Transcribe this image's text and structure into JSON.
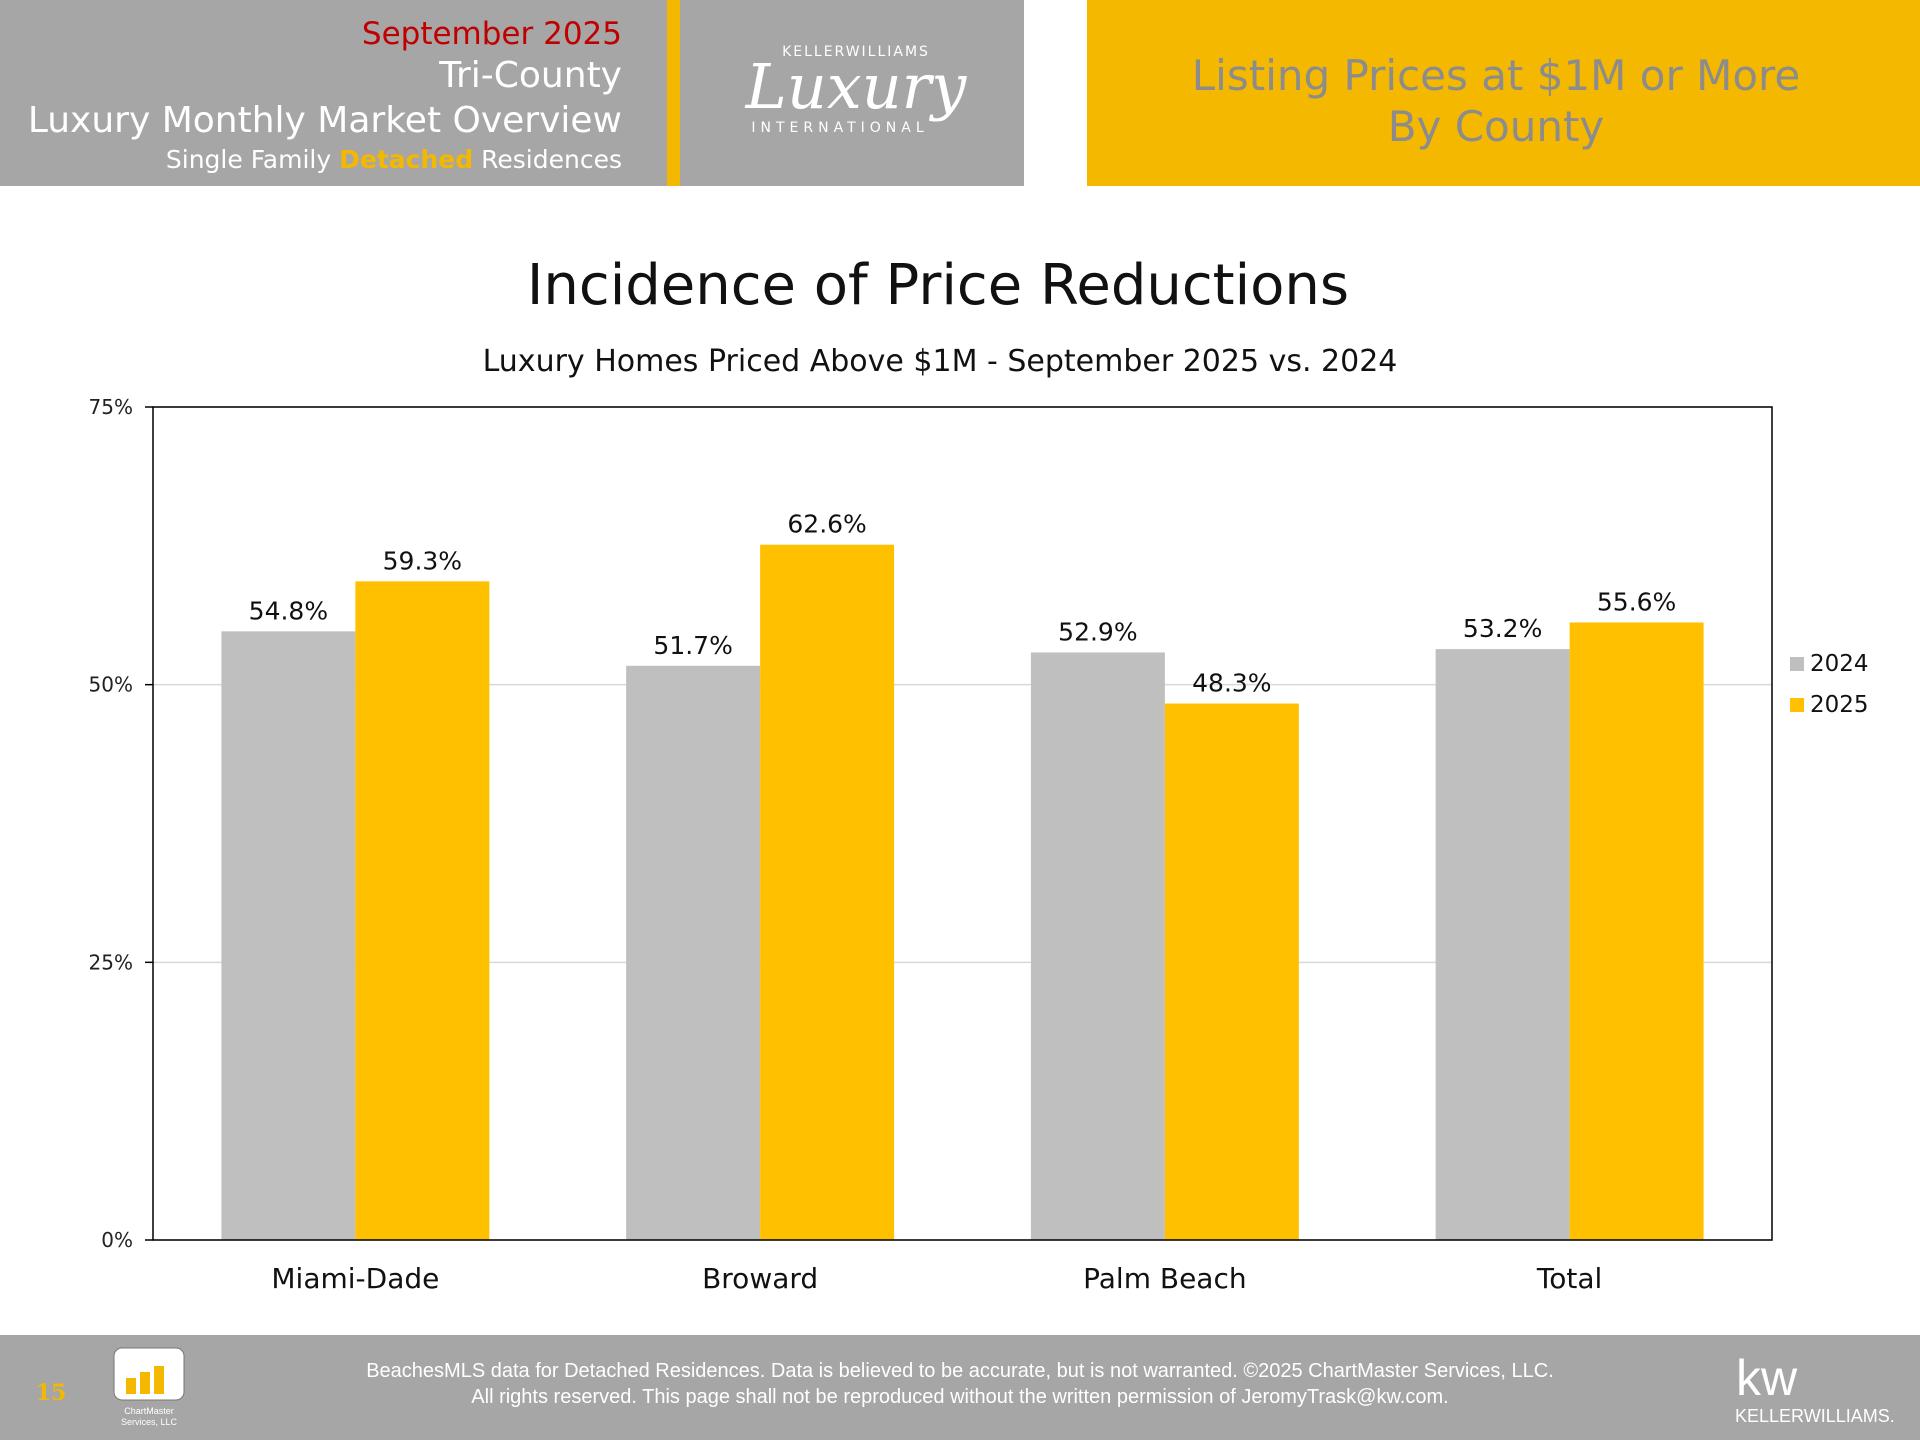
{
  "header": {
    "month": "September 2025",
    "region": "Tri-County",
    "report": "Luxury Monthly Market Overview",
    "segment": [
      "Single Family",
      "Detached",
      "Residences"
    ]
  },
  "logo": {
    "brand": "KELLERWILLIAMS",
    "script": "Luxury",
    "division": "INTERNATIONAL"
  },
  "banner": [
    "Listing Prices at $1M or More",
    "By County"
  ],
  "chart_data": {
    "type": "bar",
    "title": "Incidence of Price Reductions",
    "subtitle": "Luxury Homes Priced Above $1M - September 2025 vs. 2024",
    "categories": [
      "Miami-Dade",
      "Broward",
      "Palm Beach",
      "Total"
    ],
    "series": [
      {
        "name": "2024",
        "color": "#bfbfbf",
        "values": [
          54.8,
          51.7,
          52.9,
          53.2
        ],
        "value_labels": [
          "54.8%",
          "51.7%",
          "52.9%",
          "53.2%"
        ]
      },
      {
        "name": "2025",
        "color": "#ffc000",
        "values": [
          59.3,
          62.6,
          48.3,
          55.6
        ],
        "value_labels": [
          "59.3%",
          "62.6%",
          "48.3%",
          "55.6%"
        ]
      }
    ],
    "ylim": [
      0,
      75
    ],
    "yticks": [
      {
        "value": 0,
        "label": "0%"
      },
      {
        "value": 25,
        "label": "25%"
      },
      {
        "value": 50,
        "label": "50%"
      },
      {
        "value": 75,
        "label": "75%"
      }
    ],
    "grid": true,
    "legend": "right"
  },
  "footer": {
    "page_number": "15",
    "lines": [
      "BeachesMLS data for Detached Residences.  Data is believed to be accurate, but is not warranted.   ©2025  ChartMaster Services, LLC.",
      "All rights reserved. This page shall not be reproduced without the written permission of JeromyTrask@kw.com."
    ],
    "badge": [
      "ChartMaster",
      "Services, LLC"
    ],
    "kw_logo": [
      "kw",
      "KELLERWILLIAMS."
    ]
  }
}
